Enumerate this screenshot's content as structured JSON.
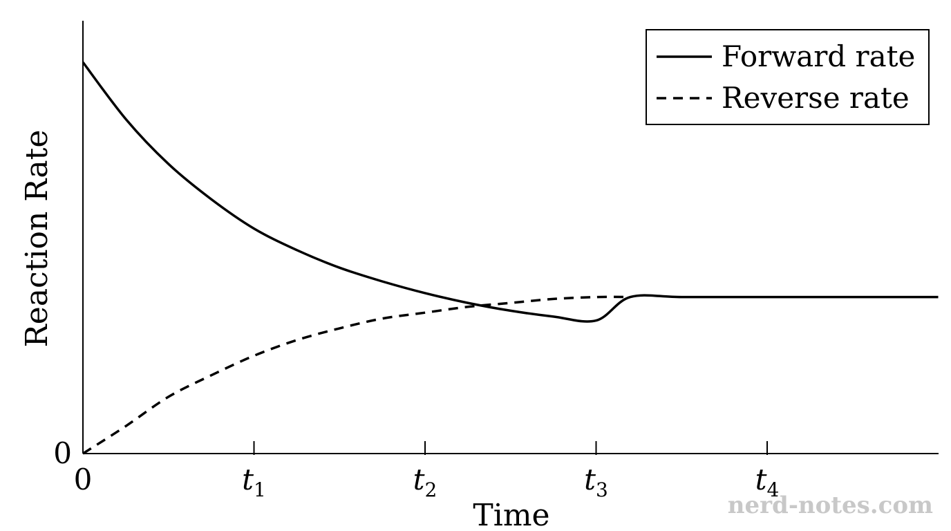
{
  "chart_data": {
    "type": "line",
    "xlabel": "Time",
    "ylabel": "Reaction Rate",
    "x_tick_labels": [
      {
        "main": "0",
        "sub": "",
        "x": 0
      },
      {
        "main": "t",
        "sub": "1",
        "x": 1
      },
      {
        "main": "t",
        "sub": "2",
        "x": 2
      },
      {
        "main": "t",
        "sub": "3",
        "x": 3
      },
      {
        "main": "t",
        "sub": "4",
        "x": 4
      }
    ],
    "y_tick_labels": [
      {
        "label": "0",
        "y": 0
      }
    ],
    "xlim": [
      0,
      5
    ],
    "ylim": [
      0,
      1.1
    ],
    "grid": false,
    "legend_position": "top-right",
    "series": [
      {
        "name": "Forward rate",
        "style": "solid",
        "x": [
          0,
          0.25,
          0.5,
          0.75,
          1.0,
          1.25,
          1.5,
          1.75,
          2.0,
          2.25,
          2.5,
          2.75,
          3.0,
          3.2,
          3.5,
          4.0,
          4.5,
          5.0
        ],
        "y": [
          1.0,
          0.855,
          0.74,
          0.65,
          0.575,
          0.52,
          0.475,
          0.44,
          0.41,
          0.385,
          0.365,
          0.35,
          0.34,
          0.4,
          0.4,
          0.4,
          0.4,
          0.4
        ]
      },
      {
        "name": "Reverse rate",
        "style": "dashed",
        "x": [
          0,
          0.25,
          0.5,
          0.75,
          1.0,
          1.25,
          1.5,
          1.75,
          2.0,
          2.25,
          2.5,
          2.75,
          3.0,
          3.2
        ],
        "y": [
          0,
          0.07,
          0.145,
          0.2,
          0.25,
          0.29,
          0.32,
          0.345,
          0.36,
          0.375,
          0.385,
          0.395,
          0.4,
          0.4
        ]
      }
    ]
  },
  "watermark": "nerd-notes.com"
}
